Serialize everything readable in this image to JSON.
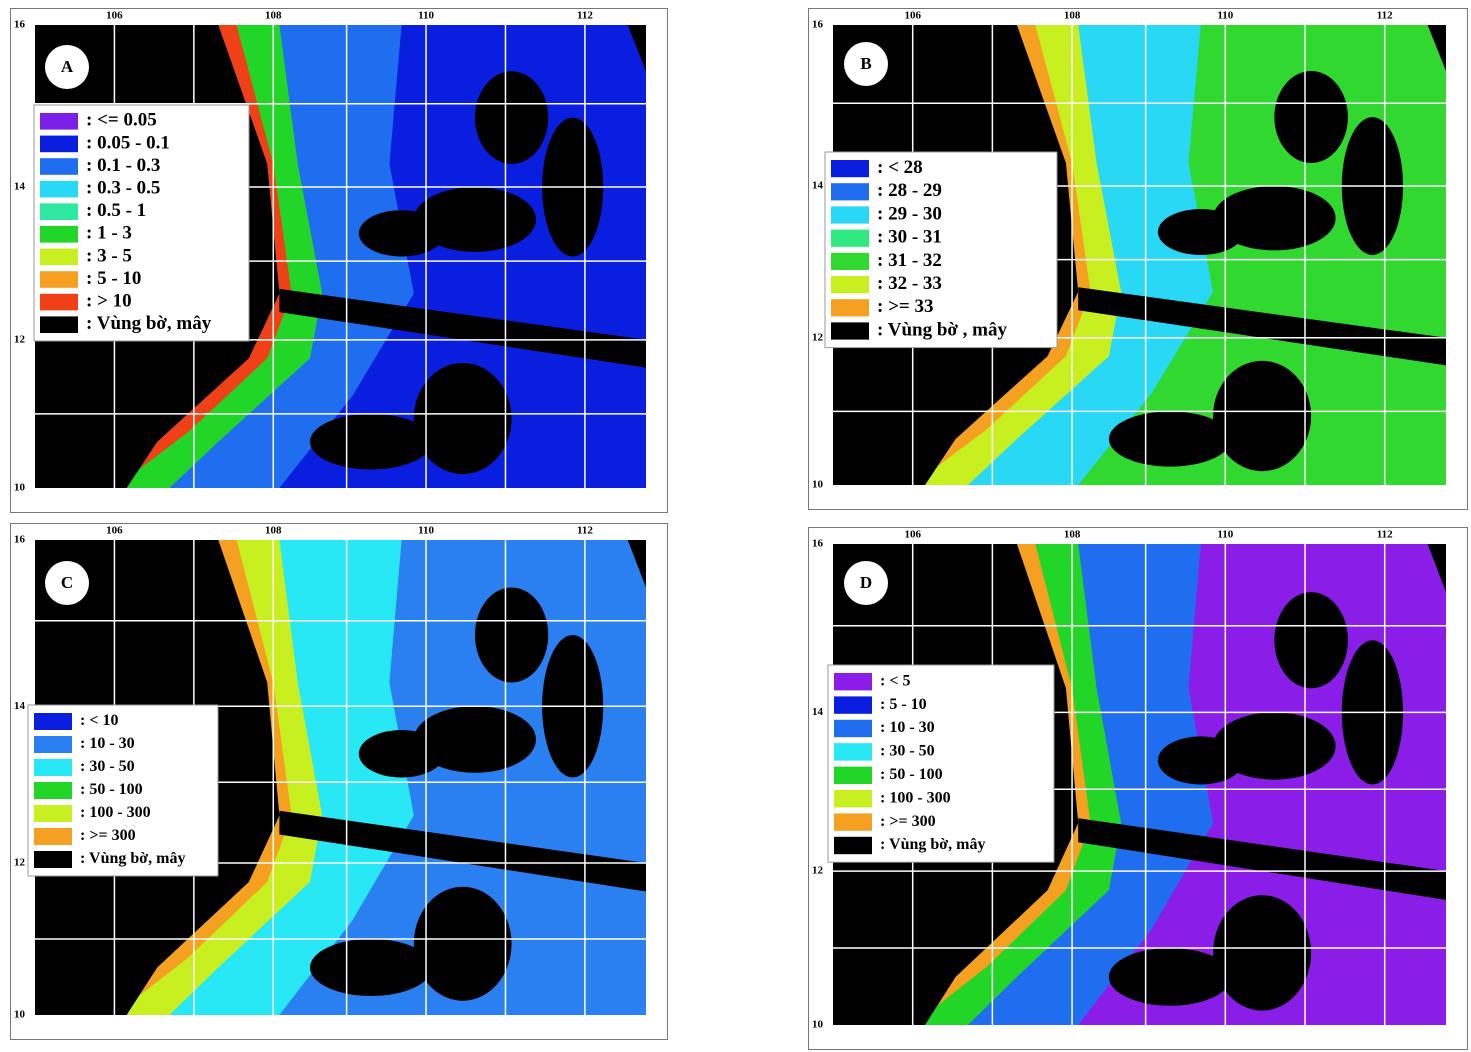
{
  "panels": [
    {
      "label": "A",
      "lon_labels": [
        "106",
        "108",
        "110",
        "112"
      ],
      "lat_labels": [
        "16",
        "14",
        "12",
        "10"
      ],
      "legend": [
        {
          "color": "#7a1fe8",
          "label": ": <= 0.05"
        },
        {
          "color": "#0a1ee0",
          "label": ": 0.05 - 0.1"
        },
        {
          "color": "#1f6ef0",
          "label": ": 0.1 - 0.3"
        },
        {
          "color": "#28d8f5",
          "label": ": 0.3 - 0.5"
        },
        {
          "color": "#2ee8a0",
          "label": ": 0.5 - 1"
        },
        {
          "color": "#22d628",
          "label": ": 1 - 3"
        },
        {
          "color": "#c8f020",
          "label": ": 3 - 5"
        },
        {
          "color": "#f5a020",
          "label": ": 5 - 10"
        },
        {
          "color": "#f04018",
          "label": ": > 10"
        },
        {
          "color": "#000000",
          "label": ": Vùng bờ, mây"
        }
      ]
    },
    {
      "label": "B",
      "lon_labels": [
        "106",
        "108",
        "110",
        "112"
      ],
      "lat_labels": [
        "16",
        "14",
        "12",
        "10"
      ],
      "legend": [
        {
          "color": "#0a1ee0",
          "label": ": < 28"
        },
        {
          "color": "#1f6ef0",
          "label": ": 28 - 29"
        },
        {
          "color": "#28d8f5",
          "label": ": 29 - 30"
        },
        {
          "color": "#2ee880",
          "label": ": 30 - 31"
        },
        {
          "color": "#30d830",
          "label": ": 31 - 32"
        },
        {
          "color": "#c8f020",
          "label": ": 32 - 33"
        },
        {
          "color": "#f5a020",
          "label": ": >= 33"
        },
        {
          "color": "#000000",
          "label": ": Vùng bờ , mây"
        }
      ]
    },
    {
      "label": "C",
      "lon_labels": [
        "106",
        "108",
        "110",
        "112"
      ],
      "lat_labels": [
        "16",
        "14",
        "12",
        "10"
      ],
      "legend": [
        {
          "color": "#0a1ee0",
          "label": ": < 10"
        },
        {
          "color": "#2a80f0",
          "label": ": 10 - 30"
        },
        {
          "color": "#28e8f5",
          "label": ": 30 - 50"
        },
        {
          "color": "#22d628",
          "label": ": 50 - 100"
        },
        {
          "color": "#c8f020",
          "label": ": 100 - 300"
        },
        {
          "color": "#f5a020",
          "label": ": >= 300"
        },
        {
          "color": "#000000",
          "label": ": Vùng bờ, mây"
        }
      ]
    },
    {
      "label": "D",
      "lon_labels": [
        "106",
        "108",
        "110",
        "112"
      ],
      "lat_labels": [
        "16",
        "14",
        "12",
        "10"
      ],
      "legend": [
        {
          "color": "#8a1ee8",
          "label": ": < 5"
        },
        {
          "color": "#0a1ee0",
          "label": ": 5 - 10"
        },
        {
          "color": "#1f6ef0",
          "label": ": 10 - 30"
        },
        {
          "color": "#28e8f5",
          "label": ": 30 - 50"
        },
        {
          "color": "#22d628",
          "label": ": 50 - 100"
        },
        {
          "color": "#c8f020",
          "label": ": 100 - 300"
        },
        {
          "color": "#f5a020",
          "label": ": >= 300"
        },
        {
          "color": "#000000",
          "label": ": Vùng bờ, mây"
        }
      ]
    }
  ]
}
